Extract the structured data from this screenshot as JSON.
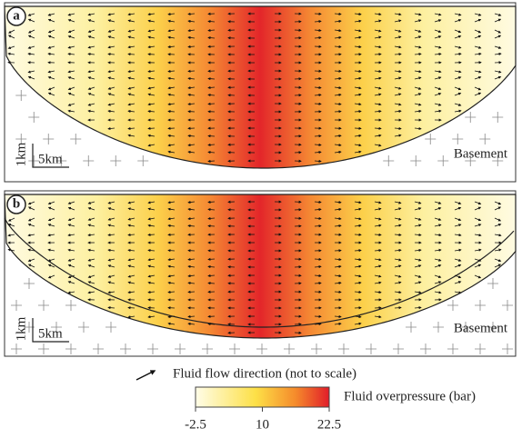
{
  "panels": [
    {
      "label": "a",
      "basement": "Basement",
      "scale_vertical": "1km",
      "scale_horizontal": "5km"
    },
    {
      "label": "b",
      "basement": "Basement",
      "scale_vertical": "1km",
      "scale_horizontal": "5km"
    }
  ],
  "legend": {
    "arrow_text": "Fluid flow direction (not to scale)",
    "colorbar": {
      "label": "Fluid overpressure (bar)",
      "lim": [
        -2.5,
        22.5
      ],
      "ticks": [
        -2.5,
        10,
        22.5
      ]
    }
  }
}
